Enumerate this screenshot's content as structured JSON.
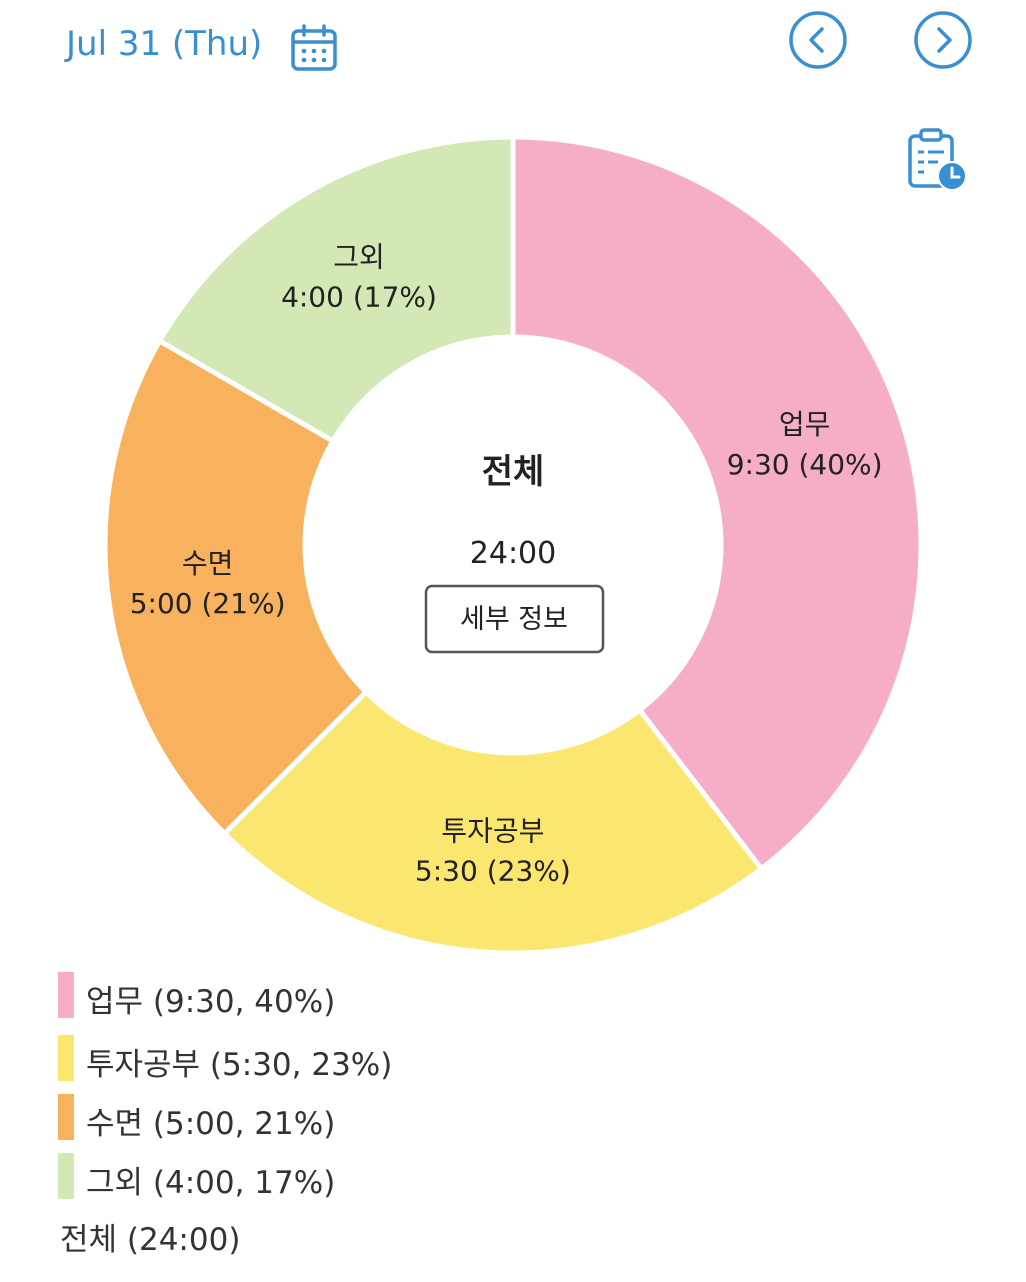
{
  "header": {
    "date": "Jul 31 (Thu)",
    "calendar_icon": "calendar-icon",
    "prev_icon": "chevron-left-circle-icon",
    "next_icon": "chevron-right-circle-icon",
    "report_icon": "clipboard-clock-icon",
    "accent_color": "#3a8fd0"
  },
  "chart_data": {
    "type": "pie",
    "variant": "donut",
    "categories": [
      "업무",
      "투자공부",
      "수면",
      "그외"
    ],
    "values": [
      9.5,
      5.5,
      5.0,
      4.0
    ],
    "slice_labels": [
      {
        "name": "업무",
        "value": "9:30 (40%)"
      },
      {
        "name": "투자공부",
        "value": "5:30 (23%)"
      },
      {
        "name": "수면",
        "value": "5:00 (21%)"
      },
      {
        "name": "그외",
        "value": "4:00 (17%)"
      }
    ],
    "colors": [
      "#f6aec8",
      "#fbe670",
      "#f8b15c",
      "#d4e8b6"
    ],
    "start": "top",
    "direction": "clockwise",
    "center": {
      "title": "전체",
      "total": "24:00",
      "button": "세부 정보"
    }
  },
  "legend": {
    "items": [
      {
        "label": "업무 (9:30, 40%)",
        "color": "#f6aec8"
      },
      {
        "label": "투자공부 (5:30, 23%)",
        "color": "#fbe670"
      },
      {
        "label": "수면 (5:00, 21%)",
        "color": "#f8b15c"
      },
      {
        "label": "그외 (4:00, 17%)",
        "color": "#d4e8b6"
      }
    ],
    "total": "전체 (24:00)"
  }
}
